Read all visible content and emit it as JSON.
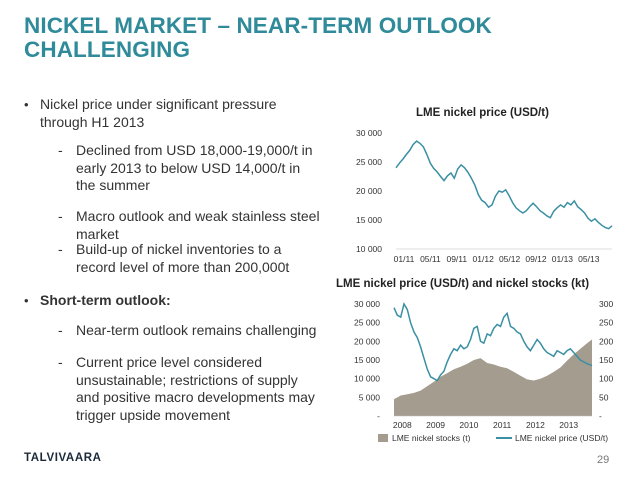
{
  "slide": {
    "title_line1": "NICKEL MARKET – NEAR-TERM OUTLOOK",
    "title_line2": "CHALLENGING",
    "page_number": "29",
    "logo_text": "TALVIVAARA"
  },
  "bullets": [
    {
      "level": 1,
      "lines": [
        "Nickel price under significant pressure",
        "through H1 2013"
      ]
    },
    {
      "level": 2,
      "lines": [
        "Declined from USD 18,000-19,000/t in",
        "early 2013 to below USD 14,000/t in",
        "the summer"
      ]
    },
    {
      "level": 2,
      "lines": [
        "Macro outlook and weak stainless steel",
        "market"
      ]
    },
    {
      "level": 2,
      "lines": [
        "Build-up of nickel inventories to a",
        "record level of more than 200,000t"
      ]
    },
    {
      "level": 1,
      "lines": [
        "Short-term outlook:"
      ],
      "bold": true
    },
    {
      "level": 2,
      "lines": [
        "Near-term outlook remains challenging"
      ]
    },
    {
      "level": 2,
      "lines": [
        "Current price level considered",
        "unsustainable; restrictions of supply",
        "and positive macro developments may",
        "trigger upside movement"
      ]
    }
  ],
  "chart_data": [
    {
      "type": "line",
      "title": "LME nickel price (USD/t)",
      "x_tick_labels": [
        "01/11",
        "05/11",
        "09/11",
        "01/12",
        "05/12",
        "09/12",
        "01/13",
        "05/13"
      ],
      "y_tick_labels": [
        "30 000",
        "25 000",
        "20 000",
        "15 000",
        "10 000"
      ],
      "ylim": [
        10000,
        30000
      ],
      "grid": false,
      "color": "#3a8fa3",
      "series": [
        {
          "x": [
            0,
            0.5,
            1,
            1.5,
            2,
            2.5,
            3,
            3.5,
            4,
            4.5,
            5,
            5.5,
            6,
            6.5,
            7,
            7.5,
            8,
            8.5,
            9,
            9.5,
            10,
            10.5,
            11,
            11.5,
            12,
            12.5,
            13,
            13.5,
            14,
            14.5,
            15,
            15.5,
            16,
            16.5,
            17,
            17.5,
            18,
            18.5,
            19,
            19.5,
            20,
            20.5,
            21,
            21.5,
            22,
            22.5,
            23,
            23.5,
            24,
            24.5,
            25,
            25.5,
            26,
            26.5,
            27,
            27.5,
            28,
            28.5,
            29,
            29.5,
            30,
            30.5,
            31,
            31.5
          ],
          "values": [
            24000,
            24800,
            25500,
            26300,
            27000,
            28000,
            28600,
            28200,
            27600,
            26300,
            24800,
            23900,
            23300,
            22500,
            21800,
            22600,
            23100,
            22200,
            23800,
            24500,
            24000,
            23200,
            22200,
            21000,
            19400,
            18400,
            18000,
            17200,
            17600,
            19100,
            20000,
            19800,
            20200,
            19200,
            18000,
            17100,
            16600,
            16200,
            16600,
            17300,
            17900,
            17300,
            16600,
            16200,
            15700,
            15400,
            16500,
            17100,
            17600,
            17200,
            18000,
            17600,
            18300,
            17300,
            16800,
            16200,
            15300,
            14800,
            15200,
            14600,
            14100,
            13700,
            13500,
            14000
          ]
        }
      ]
    },
    {
      "type": "area",
      "title": "LME nickel price (USD/t) and nickel stocks (kt)",
      "x_tick_labels": [
        "2008",
        "2009",
        "2010",
        "2011",
        "2012",
        "2013"
      ],
      "y_left_tick_labels": [
        "30 000",
        "25 000",
        "20 000",
        "15 000",
        "10 000",
        "5 000",
        "-"
      ],
      "y_right_tick_labels": [
        "300",
        "250",
        "200",
        "150",
        "100",
        "50",
        "-"
      ],
      "ylim_left": [
        0,
        30000
      ],
      "ylim_right": [
        0,
        300
      ],
      "grid": false,
      "legend_position": "bottom",
      "series": [
        {
          "name": "LME nickel stocks (t)",
          "type": "area",
          "axis": "right",
          "color": "#a49d8f",
          "x": [
            2007.8,
            2008.0,
            2008.2,
            2008.4,
            2008.6,
            2008.8,
            2009.0,
            2009.2,
            2009.4,
            2009.6,
            2009.8,
            2010.0,
            2010.2,
            2010.4,
            2010.6,
            2010.8,
            2011.0,
            2011.2,
            2011.4,
            2011.6,
            2011.8,
            2012.0,
            2012.2,
            2012.4,
            2012.6,
            2012.8,
            2013.0,
            2013.2,
            2013.4,
            2013.6,
            2013.75
          ],
          "values": [
            45,
            55,
            58,
            62,
            68,
            80,
            92,
            105,
            115,
            125,
            132,
            140,
            150,
            155,
            142,
            138,
            132,
            128,
            118,
            108,
            98,
            95,
            100,
            108,
            118,
            130,
            148,
            165,
            180,
            195,
            205
          ]
        },
        {
          "name": "LME nickel price (USD/t)",
          "type": "line",
          "axis": "left",
          "color": "#3a8fa3",
          "x": [
            2007.8,
            2007.9,
            2008.0,
            2008.1,
            2008.2,
            2008.3,
            2008.4,
            2008.5,
            2008.6,
            2008.7,
            2008.8,
            2008.9,
            2009.0,
            2009.1,
            2009.2,
            2009.3,
            2009.4,
            2009.5,
            2009.6,
            2009.7,
            2009.8,
            2009.9,
            2010.0,
            2010.1,
            2010.2,
            2010.3,
            2010.4,
            2010.5,
            2010.6,
            2010.7,
            2010.8,
            2010.9,
            2011.0,
            2011.1,
            2011.2,
            2011.3,
            2011.4,
            2011.5,
            2011.6,
            2011.7,
            2011.8,
            2011.9,
            2012.0,
            2012.1,
            2012.2,
            2012.3,
            2012.4,
            2012.5,
            2012.6,
            2012.7,
            2012.8,
            2012.9,
            2013.0,
            2013.1,
            2013.2,
            2013.3,
            2013.4,
            2013.5,
            2013.6,
            2013.75
          ],
          "values": [
            29000,
            27000,
            26500,
            30000,
            28500,
            25000,
            22500,
            21000,
            18500,
            15500,
            12500,
            10500,
            10000,
            9500,
            11000,
            12000,
            14500,
            16500,
            18000,
            17500,
            19000,
            18000,
            18500,
            20500,
            23500,
            24000,
            20000,
            19500,
            22000,
            21500,
            23500,
            24500,
            24000,
            26500,
            27500,
            24000,
            23500,
            22500,
            22000,
            20000,
            18500,
            17500,
            19000,
            20500,
            19500,
            18000,
            17000,
            16500,
            16000,
            17500,
            17000,
            16500,
            17500,
            18000,
            17000,
            16000,
            15000,
            14500,
            14000,
            13500
          ]
        }
      ]
    }
  ]
}
